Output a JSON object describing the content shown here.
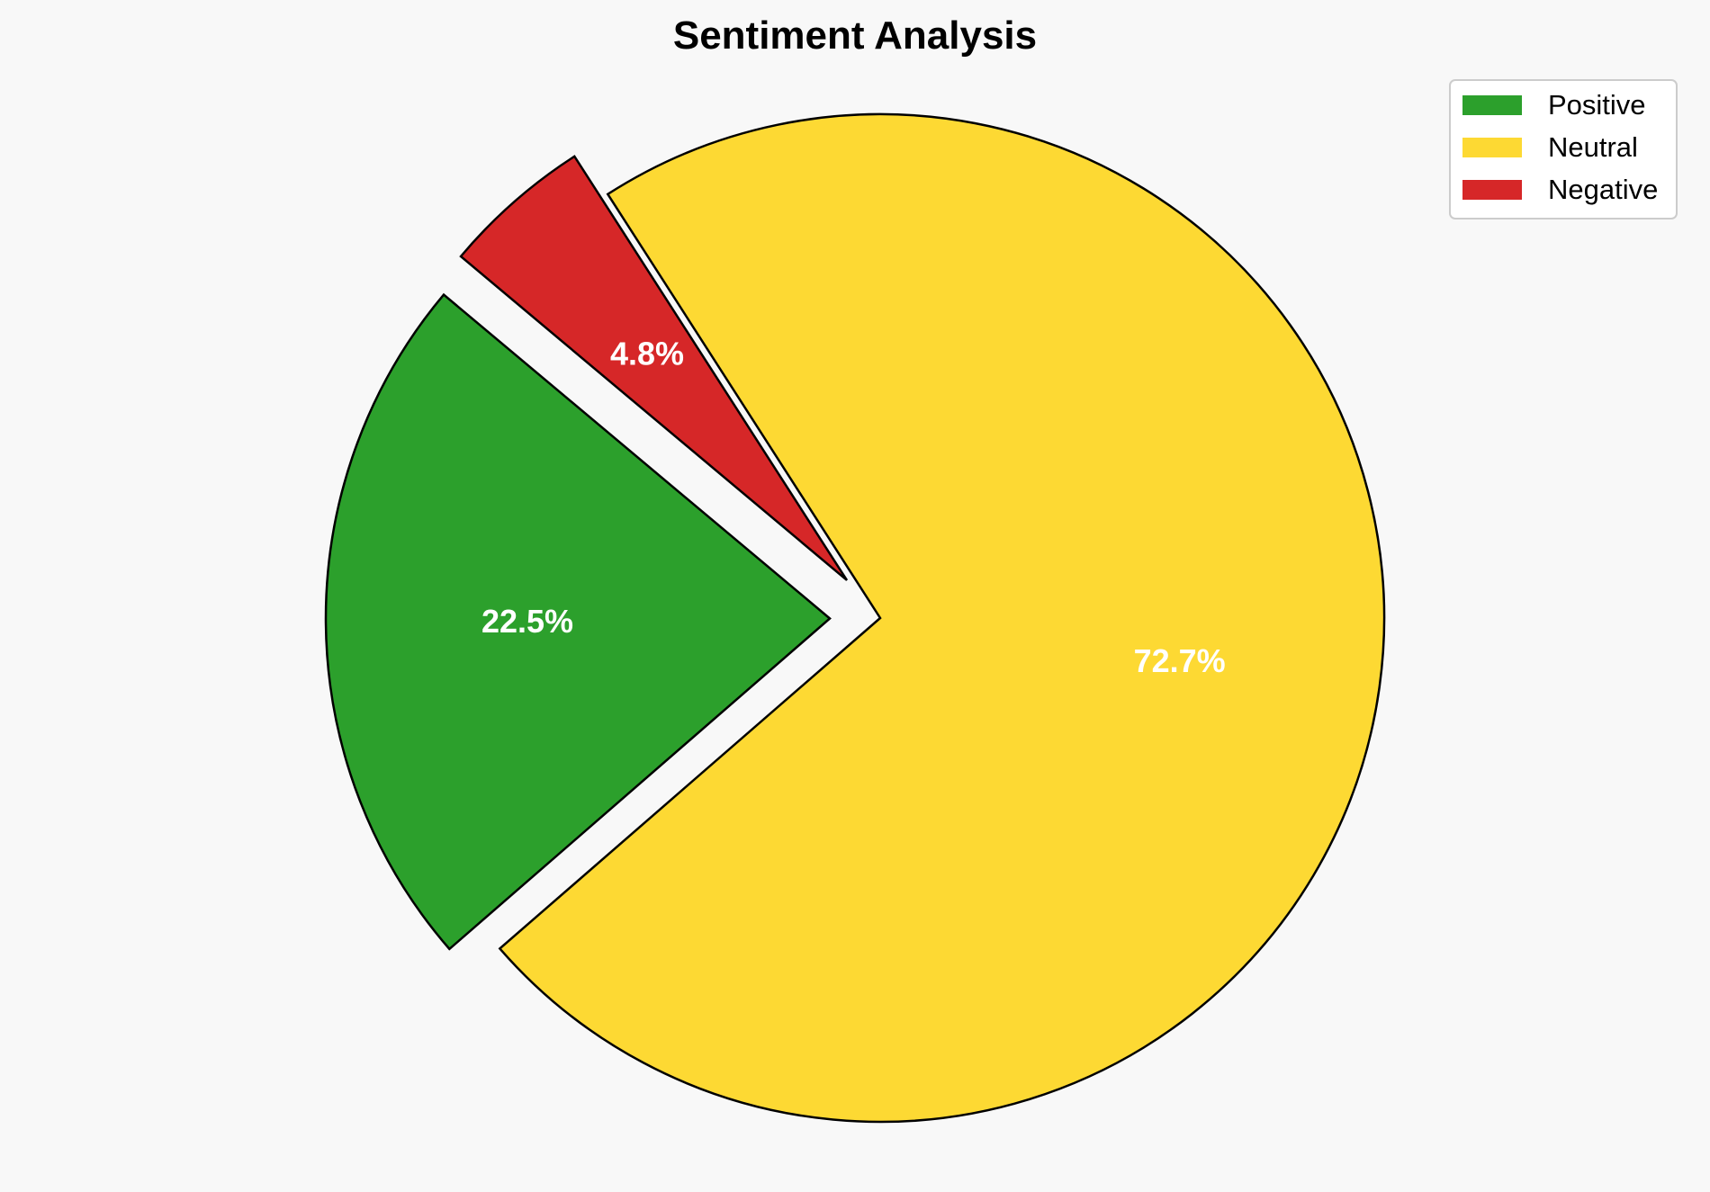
{
  "chart_data": {
    "type": "pie",
    "title": "Sentiment Analysis",
    "categories": [
      "Positive",
      "Neutral",
      "Negative"
    ],
    "values": [
      22.5,
      72.7,
      4.8
    ],
    "labels": [
      "22.5%",
      "72.7%",
      "4.8%"
    ],
    "colors": [
      "#2ca02c",
      "#fdd933",
      "#d62728"
    ],
    "exploded": [
      true,
      false,
      true
    ],
    "start_angle_deg": 140,
    "direction": "counterclockwise",
    "legend": {
      "position": "top-right",
      "entries": [
        "Positive",
        "Neutral",
        "Negative"
      ]
    }
  }
}
